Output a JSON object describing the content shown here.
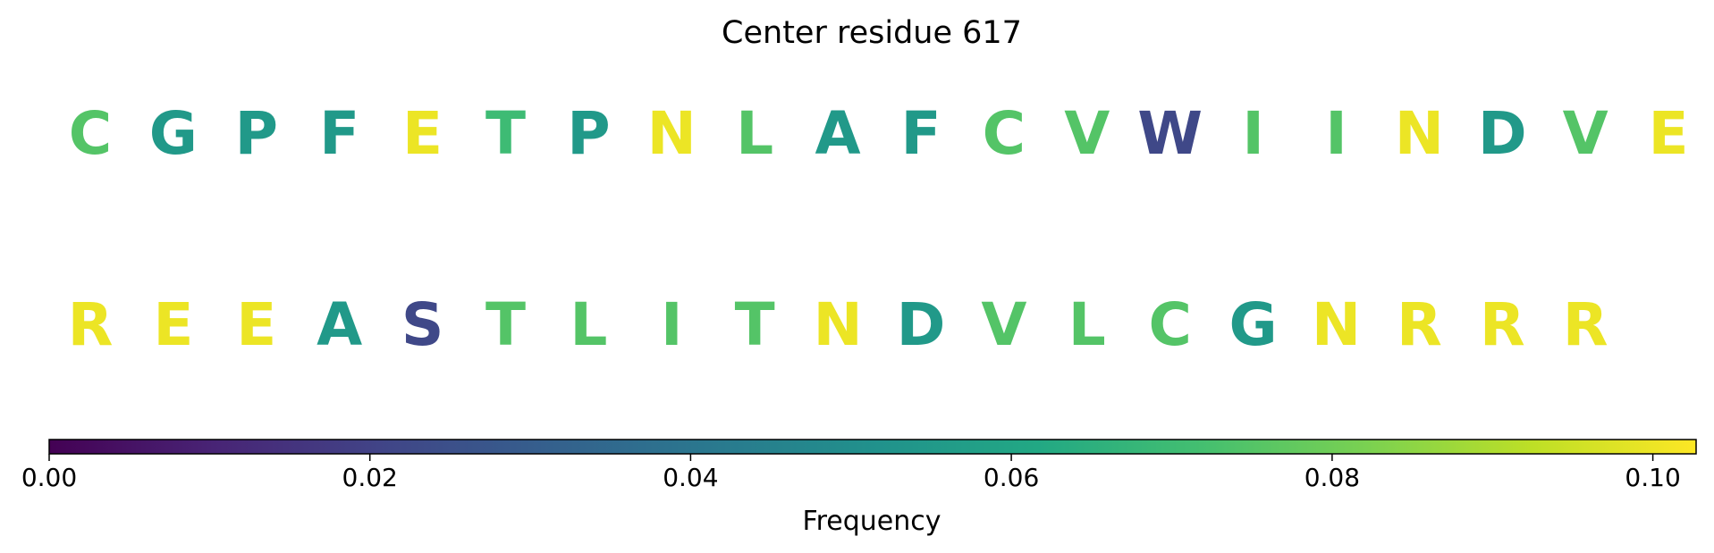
{
  "chart_data": {
    "type": "sequence-logo",
    "title": "Center residue 617",
    "rows": [
      {
        "letters": [
          "C",
          "G",
          "P",
          "F",
          "E",
          "T",
          "P",
          "N",
          "L",
          "A",
          "F",
          "C",
          "V",
          "W",
          "I",
          "I",
          "N",
          "D",
          "V",
          "E"
        ],
        "frequencies": [
          0.075,
          0.055,
          0.055,
          0.055,
          0.1,
          0.07,
          0.055,
          0.1,
          0.075,
          0.055,
          0.055,
          0.075,
          0.075,
          0.022,
          0.075,
          0.075,
          0.1,
          0.055,
          0.075,
          0.1
        ]
      },
      {
        "letters": [
          "R",
          "E",
          "E",
          "A",
          "S",
          "T",
          "L",
          "I",
          "T",
          "N",
          "D",
          "V",
          "L",
          "C",
          "G",
          "N",
          "R",
          "R",
          "R"
        ],
        "frequencies": [
          0.1,
          0.1,
          0.1,
          0.055,
          0.022,
          0.075,
          0.075,
          0.075,
          0.075,
          0.1,
          0.055,
          0.075,
          0.075,
          0.075,
          0.055,
          0.1,
          0.1,
          0.1,
          0.1
        ]
      }
    ],
    "colorbar": {
      "label": "Frequency",
      "colormap": "viridis",
      "range": [
        0,
        0.1027
      ],
      "ticks": [
        0.0,
        0.02,
        0.04,
        0.06,
        0.08,
        0.1
      ],
      "tick_labels": [
        "0.00",
        "0.02",
        "0.04",
        "0.06",
        "0.08",
        "0.10"
      ]
    }
  }
}
